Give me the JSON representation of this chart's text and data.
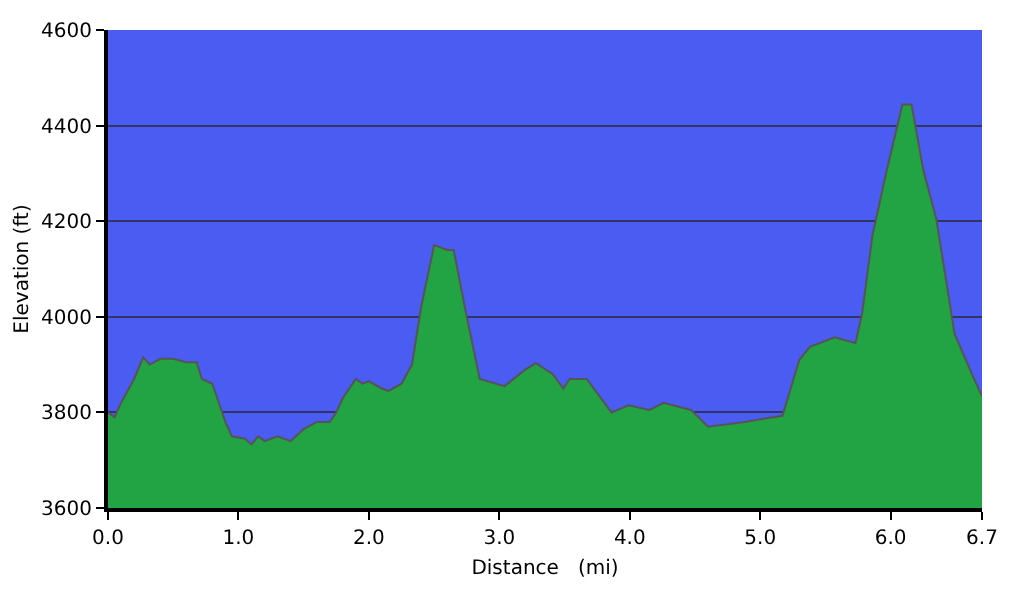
{
  "chart_data": {
    "type": "area",
    "xlabel": "Distance   (mi)",
    "ylabel": "Elevation (ft)",
    "x": [
      0,
      0.05,
      0.1,
      0.2,
      0.27,
      0.32,
      0.4,
      0.5,
      0.6,
      0.68,
      0.72,
      0.8,
      0.9,
      0.95,
      1.05,
      1.1,
      1.15,
      1.2,
      1.3,
      1.4,
      1.5,
      1.6,
      1.7,
      1.75,
      1.8,
      1.9,
      1.95,
      2.0,
      2.1,
      2.15,
      2.25,
      2.33,
      2.4,
      2.5,
      2.6,
      2.65,
      2.75,
      2.85,
      3.04,
      3.2,
      3.28,
      3.41,
      3.49,
      3.54,
      3.67,
      3.86,
      3.99,
      4.15,
      4.26,
      4.47,
      4.6,
      4.88,
      4.99,
      5.17,
      5.3,
      5.38,
      5.57,
      5.73,
      5.78,
      5.86,
      5.97,
      6.09,
      6.16,
      6.25,
      6.35,
      6.49,
      6.62,
      6.7
    ],
    "series": [
      {
        "color": "#22a344",
        "values": [
          3800,
          3790,
          3820,
          3870,
          3915,
          3900,
          3912,
          3912,
          3905,
          3905,
          3870,
          3860,
          3780,
          3750,
          3745,
          3733,
          3750,
          3740,
          3750,
          3740,
          3765,
          3780,
          3780,
          3800,
          3830,
          3870,
          3860,
          3865,
          3850,
          3845,
          3860,
          3900,
          4020,
          4150,
          4140,
          4140,
          4000,
          3870,
          3855,
          3890,
          3903,
          3880,
          3850,
          3870,
          3870,
          3800,
          3815,
          3805,
          3820,
          3805,
          3770,
          3780,
          3785,
          3793,
          3910,
          3937,
          3957,
          3945,
          4005,
          4170,
          4307,
          4444,
          4444,
          4307,
          4204,
          3964,
          3882,
          3834
        ]
      }
    ],
    "xlim": [
      0,
      6.7
    ],
    "xticks": [
      {
        "value": 0,
        "label": "0.0"
      },
      {
        "value": 1,
        "label": "1.0"
      },
      {
        "value": 2,
        "label": "2.0"
      },
      {
        "value": 3,
        "label": "3.0"
      },
      {
        "value": 4,
        "label": "4.0"
      },
      {
        "value": 5,
        "label": "5.0"
      },
      {
        "value": 6,
        "label": "6.0"
      },
      6.7
    ],
    "ylim": [
      3600,
      4600
    ],
    "yticks": [
      3600,
      3800,
      4000,
      4200,
      4400,
      4600
    ],
    "grid": "y",
    "legend": false
  }
}
